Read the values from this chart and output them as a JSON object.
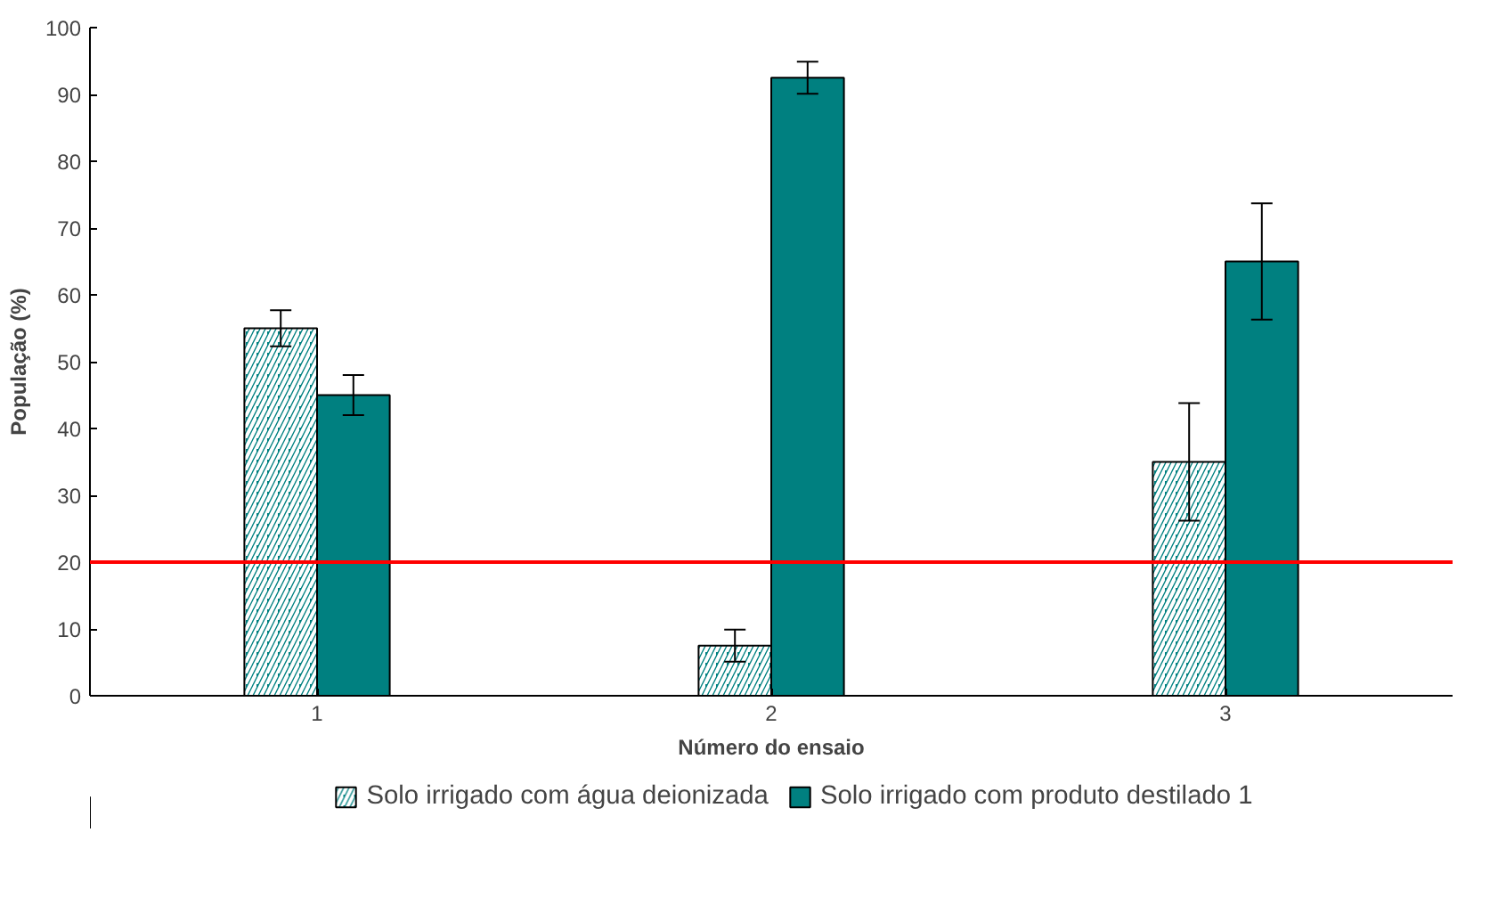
{
  "chart_data": {
    "type": "bar",
    "xlabel": "Número do ensaio",
    "ylabel": "População (%)",
    "categories": [
      "1",
      "2",
      "3"
    ],
    "series": [
      {
        "name": "Solo irrigado com água deionizada",
        "color": "#008080",
        "values": [
          55,
          7.5,
          35
        ],
        "errors": [
          2.7,
          2.4,
          8.8
        ]
      },
      {
        "name": "Solo irrigado com produto destilado 1",
        "color": "#008080",
        "values": [
          45,
          92.5,
          65
        ],
        "errors": [
          3,
          2.4,
          8.7
        ]
      }
    ],
    "ylim": [
      0,
      100
    ],
    "yticks": [
      0,
      10,
      20,
      30,
      40,
      50,
      60,
      70,
      80,
      90,
      100
    ],
    "ref_lines": [
      {
        "axis": "y",
        "value": 20,
        "color": "#ff0000"
      }
    ],
    "grid": false,
    "legend": "bottom"
  }
}
